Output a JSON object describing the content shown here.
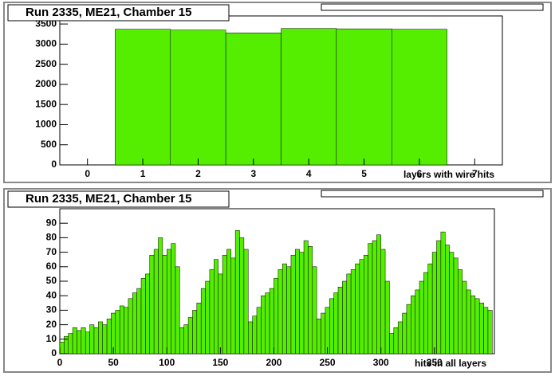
{
  "chart_data": [
    {
      "type": "histogram",
      "title": "Run 2335, ME21, Chamber 15",
      "x_label": "layers with wire hits",
      "bins": [
        0.5,
        1.5,
        2.5,
        3.5,
        4.5,
        5.5,
        6.5
      ],
      "values": [
        3370,
        3350,
        3280,
        3390,
        3380,
        3370
      ],
      "color": "#55ee00",
      "xlim": [
        -0.5,
        7.5
      ],
      "ylim": [
        0,
        3700
      ],
      "xticks": [
        0,
        1,
        2,
        3,
        4,
        5,
        6,
        7
      ],
      "yticks": [
        0,
        500,
        1000,
        1500,
        2000,
        2500,
        3000,
        3500
      ]
    },
    {
      "type": "histogram",
      "title": "Run 2335, ME21, Chamber 15",
      "x_label": "hits in all layers",
      "bins": [
        0,
        4,
        8,
        12,
        16,
        20,
        24,
        28,
        32,
        36,
        40,
        44,
        48,
        52,
        56,
        60,
        64,
        68,
        72,
        76,
        80,
        84,
        88,
        92,
        96,
        100,
        104,
        108,
        112,
        116,
        120,
        124,
        128,
        132,
        136,
        140,
        144,
        148,
        152,
        156,
        160,
        164,
        168,
        172,
        176,
        180,
        184,
        188,
        192,
        196,
        200,
        204,
        208,
        212,
        216,
        220,
        224,
        228,
        232,
        236,
        240,
        244,
        248,
        252,
        256,
        260,
        264,
        268,
        272,
        276,
        280,
        284,
        288,
        292,
        296,
        300,
        304,
        308,
        312,
        316,
        320,
        324,
        328,
        332,
        336,
        340,
        344,
        348,
        352,
        356,
        360,
        364,
        368,
        372,
        376,
        380,
        384,
        388,
        392,
        396,
        400,
        404
      ],
      "values": [
        8,
        12,
        14,
        18,
        16,
        18,
        15,
        20,
        18,
        22,
        20,
        24,
        28,
        30,
        33,
        32,
        38,
        42,
        45,
        52,
        55,
        68,
        72,
        80,
        68,
        72,
        76,
        60,
        18,
        20,
        25,
        30,
        35,
        45,
        50,
        58,
        65,
        55,
        68,
        72,
        66,
        85,
        80,
        72,
        22,
        26,
        32,
        40,
        42,
        45,
        52,
        58,
        62,
        60,
        68,
        72,
        70,
        78,
        74,
        60,
        24,
        28,
        32,
        38,
        42,
        46,
        50,
        55,
        58,
        62,
        65,
        68,
        76,
        78,
        82,
        72,
        50,
        14,
        18,
        22,
        28,
        34,
        40,
        44,
        50,
        56,
        62,
        70,
        78,
        84,
        75,
        70,
        66,
        58,
        50,
        44,
        40,
        38,
        35,
        32,
        30
      ],
      "color": "#55ee00",
      "xlim": [
        0,
        406
      ],
      "ylim": [
        0,
        100
      ],
      "xticks": [
        0,
        50,
        100,
        150,
        200,
        250,
        300,
        350
      ],
      "yticks": [
        0,
        10,
        20,
        30,
        40,
        50,
        60,
        70,
        80,
        90
      ]
    }
  ]
}
